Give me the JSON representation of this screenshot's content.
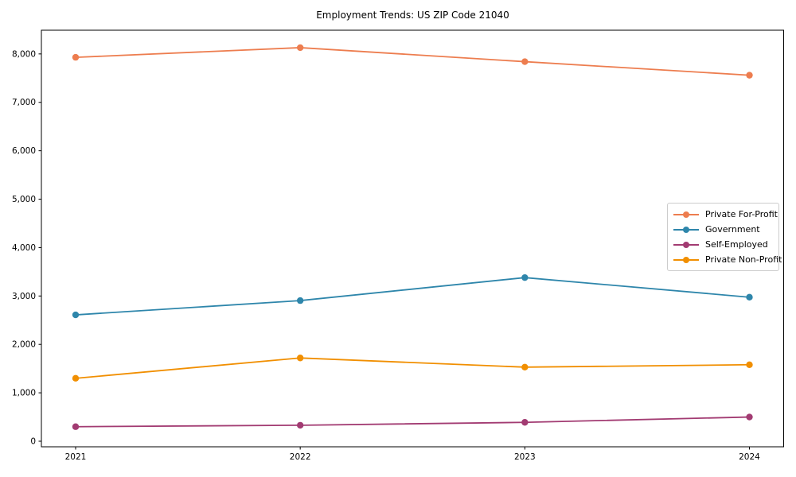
{
  "chart_data": {
    "type": "line",
    "title": "Employment Trends: US ZIP Code 21040",
    "xlabel": "",
    "ylabel": "",
    "x": [
      2021,
      2022,
      2023,
      2024
    ],
    "x_tick_labels": [
      "2021",
      "2022",
      "2023",
      "2024"
    ],
    "series": [
      {
        "name": "Private For-Profit",
        "color": "#ED7D4F",
        "values": [
          7930,
          8130,
          7840,
          7560
        ]
      },
      {
        "name": "Government",
        "color": "#2E86AB",
        "values": [
          2610,
          2905,
          3380,
          2975
        ]
      },
      {
        "name": "Self-Employed",
        "color": "#A23B72",
        "values": [
          300,
          330,
          390,
          500
        ]
      },
      {
        "name": "Private Non-Profit",
        "color": "#F18F01",
        "values": [
          1300,
          1720,
          1530,
          1580
        ]
      }
    ],
    "yticks": [
      0,
      1000,
      2000,
      3000,
      4000,
      5000,
      6000,
      7000,
      8000
    ],
    "ytick_labels": [
      "0",
      "1,000",
      "2,000",
      "3,000",
      "4,000",
      "5,000",
      "6,000",
      "7,000",
      "8,000"
    ],
    "ylim": [
      -115,
      8490
    ],
    "grid": false,
    "marker": "circle",
    "legend_position": "center right",
    "spine_color": "#000000",
    "background_color": "#ffffff"
  }
}
